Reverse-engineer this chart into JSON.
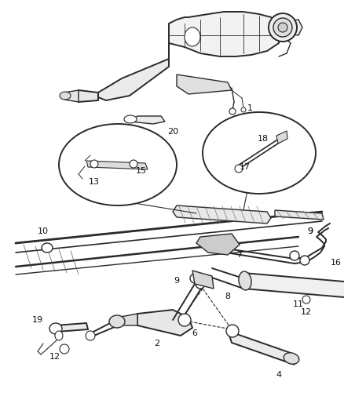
{
  "bg_color": "#ffffff",
  "line_color": "#2a2a2a",
  "label_color": "#111111",
  "fig_width": 4.39,
  "fig_height": 5.33,
  "dpi": 100
}
